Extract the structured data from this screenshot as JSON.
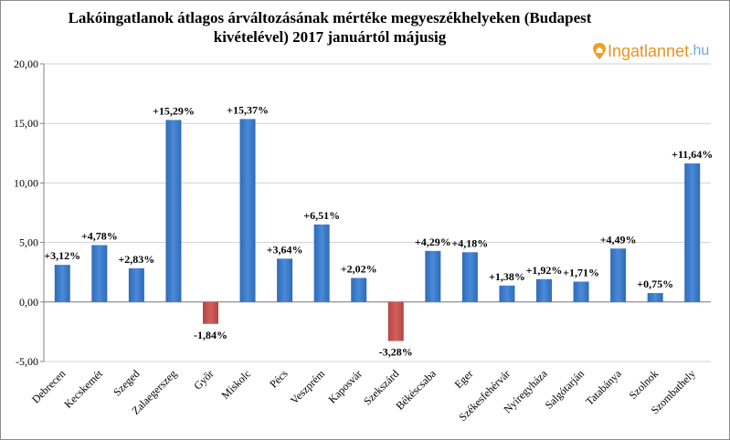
{
  "title": "Lakóingatlanok átlagos árváltozásának mértéke megyeszékhelyeken (Budapest kivételével) 2017 januártól májusig",
  "logo": {
    "brand": "Ingatlannet",
    "tld": ".hu",
    "icon": "house-pin-icon"
  },
  "colors": {
    "positive": "#3f7fd0",
    "negative": "#c0504d",
    "grid": "#d0d0d0",
    "axis": "#808080"
  },
  "chart_data": {
    "type": "bar",
    "categories": [
      "Debrecen",
      "Kecskemét",
      "Szeged",
      "Zalaegerszeg",
      "Győr",
      "Miskolc",
      "Pécs",
      "Veszprém",
      "Kaposvár",
      "Szekszárd",
      "Békéscsaba",
      "Eger",
      "Székesfehérvár",
      "Nyíregyháza",
      "Salgótarján",
      "Tatabánya",
      "Szolnok",
      "Szombathely"
    ],
    "values": [
      3.12,
      4.78,
      2.83,
      15.29,
      -1.84,
      15.37,
      3.64,
      6.51,
      2.02,
      -3.28,
      4.29,
      4.18,
      1.38,
      1.92,
      1.71,
      4.49,
      0.75,
      11.64
    ],
    "data_labels": [
      "+3,12%",
      "+4,78%",
      "+2,83%",
      "+15,29%",
      "-1,84%",
      "+15,37%",
      "+3,64%",
      "+6,51%",
      "+2,02%",
      "-3,28%",
      "+4,29%",
      "+4,18%",
      "+1,38%",
      "+1,92%",
      "+1,71%",
      "+4,49%",
      "+0,75%",
      "+11,64%"
    ],
    "y_ticks": [
      20,
      15,
      10,
      5,
      0,
      -5
    ],
    "y_tick_labels": [
      "20,00",
      "15,00",
      "10,00",
      "5,00",
      "0,00",
      "-5,00"
    ],
    "ylim": [
      -5,
      20
    ],
    "grid": true,
    "legend": "none"
  }
}
